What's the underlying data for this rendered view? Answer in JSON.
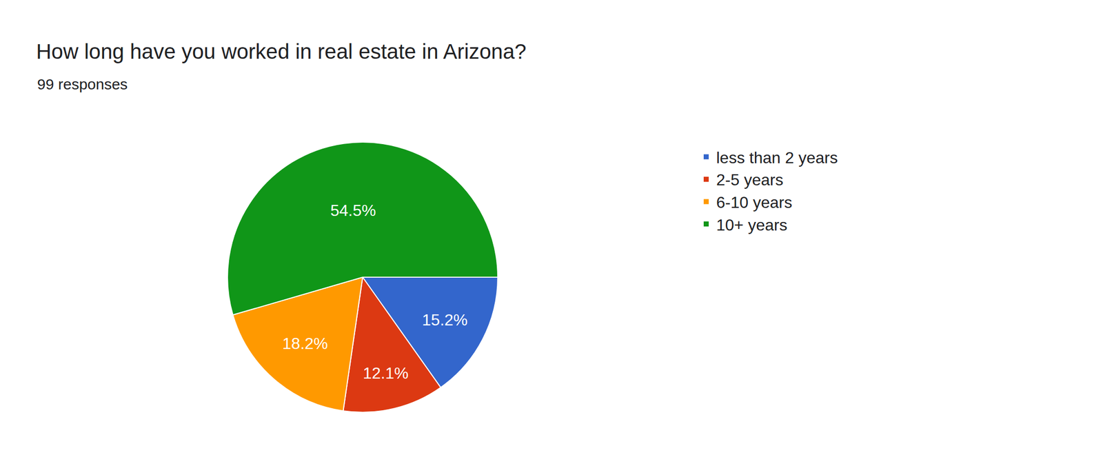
{
  "chart_data": {
    "type": "pie",
    "title": "How long have you worked in real estate in Arizona?",
    "subtitle": "99 responses",
    "categories": [
      "less than 2 years",
      "2-5 years",
      "6-10 years",
      "10+ years"
    ],
    "values": [
      15.2,
      12.1,
      18.2,
      54.5
    ],
    "value_labels": [
      "15.2%",
      "12.1%",
      "18.2%",
      "54.5%"
    ],
    "colors": [
      "#3366cc",
      "#dc3912",
      "#ff9900",
      "#109618"
    ],
    "data_labels": true,
    "legend": "right"
  }
}
